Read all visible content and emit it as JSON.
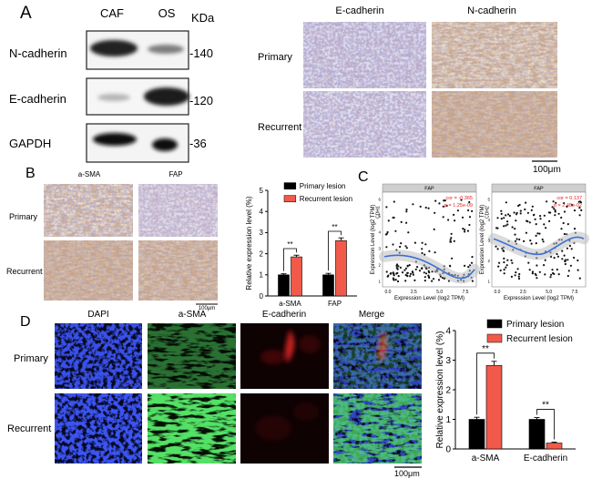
{
  "panel_letters": {
    "a": "A",
    "b": "B",
    "c": "C",
    "d": "D"
  },
  "panelA": {
    "lane_labels": [
      "CAF",
      "OS"
    ],
    "unit": "KDa",
    "bands": [
      {
        "protein": "N-cadherin",
        "kda": "-140"
      },
      {
        "protein": "E-cadherin",
        "kda": "-120"
      },
      {
        "protein": "GAPDH",
        "kda": "-36"
      }
    ],
    "ihc_columns": [
      "E-cadherin",
      "N-cadherin"
    ],
    "ihc_rows": [
      "Primary",
      "Recurrent"
    ],
    "scale_bar": "100μm"
  },
  "panelB": {
    "ihc_columns": [
      "a-SMA",
      "FAP"
    ],
    "ihc_rows": [
      "Primary",
      "Recurrent"
    ],
    "scale_bar": "100μm"
  },
  "panelC": {
    "plots": [
      {
        "title": "FAP",
        "stats": [
          "cor = -0.365",
          "p = 1.25e-09"
        ],
        "y_gene": "CDH1",
        "ylabel": "Expression Level (log2 TPM)",
        "xlabel": "Expression Level (log2 TPM)",
        "xticks": [
          "0.0",
          "2.5",
          "5.0",
          "7.5"
        ],
        "yticks": [
          "1",
          "2",
          "3",
          "4",
          "5",
          "6"
        ]
      },
      {
        "title": "FAP",
        "stats": [
          "cor = 0.137",
          "p = 2.48e-02"
        ],
        "y_gene": "CDH2",
        "ylabel": "Expression Level (log2 TPM)",
        "xlabel": "Expression Level (log2 TPM)",
        "xticks": [
          "0.0",
          "2.5",
          "5.0",
          "7.5"
        ],
        "yticks": [
          "1",
          "2",
          "3",
          "4",
          "5"
        ]
      }
    ]
  },
  "panelD": {
    "if_columns": [
      "DAPI",
      "a-SMA",
      "E-cadherin",
      "Merge"
    ],
    "if_rows": [
      "Primary",
      "Recurrent"
    ],
    "scale_bar": "100μm"
  },
  "colors": {
    "primary": "#000000",
    "recurrent": "#f15a4a"
  },
  "chart_data": [
    {
      "id": "B",
      "type": "bar",
      "categories": [
        "a-SMA",
        "FAP"
      ],
      "series": [
        {
          "name": "Primary lesion",
          "values": [
            1.0,
            1.0
          ],
          "errors": [
            0.05,
            0.07
          ]
        },
        {
          "name": "Recurrent lesion",
          "values": [
            1.85,
            2.62
          ],
          "errors": [
            0.08,
            0.13
          ]
        }
      ],
      "significance": [
        "**",
        "**"
      ],
      "ylabel": "Relative expression level (%)",
      "ylim": [
        0,
        5
      ],
      "yticks": [
        "0",
        "1",
        "2",
        "3",
        "4",
        "5"
      ],
      "legend": "top"
    },
    {
      "id": "D",
      "type": "bar",
      "categories": [
        "a-SMA",
        "E-cadherin"
      ],
      "series": [
        {
          "name": "Primary lesion",
          "values": [
            1.0,
            1.0
          ],
          "errors": [
            0.07,
            0.06
          ]
        },
        {
          "name": "Recurrent lesion",
          "values": [
            2.82,
            0.2
          ],
          "errors": [
            0.14,
            0.03
          ]
        }
      ],
      "significance": [
        "**",
        "**"
      ],
      "ylabel": "Relative expression level (%)",
      "ylim": [
        0,
        4
      ],
      "yticks": [
        "0",
        "1",
        "2",
        "3",
        "4"
      ],
      "legend": "top"
    }
  ]
}
